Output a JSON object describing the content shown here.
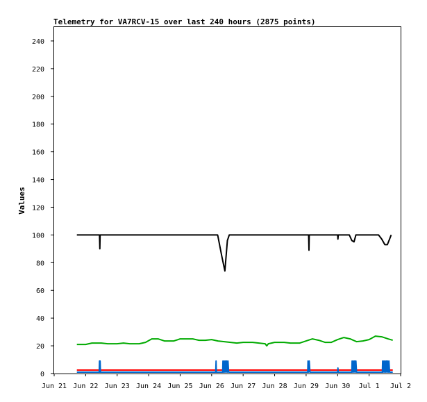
{
  "chart_data": {
    "type": "line",
    "title": "Telemetry for VA7RCV-15 over last 240 hours (2875 points)",
    "xlabel": "",
    "ylabel": "Values",
    "ylim": [
      0,
      250
    ],
    "xlim": [
      0,
      11
    ],
    "x_ticks": [
      {
        "label": "Jun 21",
        "value": 0
      },
      {
        "label": "Jun 22",
        "value": 1
      },
      {
        "label": "Jun 23",
        "value": 2
      },
      {
        "label": "Jun 24",
        "value": 3
      },
      {
        "label": "Jun 25",
        "value": 4
      },
      {
        "label": "Jun 26",
        "value": 5
      },
      {
        "label": "Jun 27",
        "value": 6
      },
      {
        "label": "Jun 28",
        "value": 7
      },
      {
        "label": "Jun 29",
        "value": 8
      },
      {
        "label": "Jun 30",
        "value": 9
      },
      {
        "label": "Jul 1",
        "value": 10
      },
      {
        "label": "Jul 2",
        "value": 11
      }
    ],
    "y_ticks": [
      0,
      20,
      40,
      60,
      80,
      100,
      120,
      140,
      160,
      180,
      200,
      220,
      240
    ],
    "grid": false,
    "legend": "none",
    "series": [
      {
        "color": "#000000",
        "points": [
          [
            0.72,
            100
          ],
          [
            1.44,
            100
          ],
          [
            1.45,
            90
          ],
          [
            1.46,
            100
          ],
          [
            5.19,
            100
          ],
          [
            5.2,
            99
          ],
          [
            5.32,
            85
          ],
          [
            5.42,
            74
          ],
          [
            5.5,
            96
          ],
          [
            5.56,
            100
          ],
          [
            8.08,
            100
          ],
          [
            8.09,
            89
          ],
          [
            8.1,
            100
          ],
          [
            9.0,
            100
          ],
          [
            9.01,
            97
          ],
          [
            9.02,
            100
          ],
          [
            9.37,
            100
          ],
          [
            9.45,
            96
          ],
          [
            9.52,
            95
          ],
          [
            9.58,
            100
          ],
          [
            10.3,
            100
          ],
          [
            10.4,
            97
          ],
          [
            10.5,
            93
          ],
          [
            10.58,
            93
          ],
          [
            10.65,
            97
          ],
          [
            10.7,
            100
          ]
        ]
      },
      {
        "color": "#00aa00",
        "points": [
          [
            0.72,
            21
          ],
          [
            1.0,
            21
          ],
          [
            1.2,
            22
          ],
          [
            1.5,
            22
          ],
          [
            1.7,
            21.5
          ],
          [
            2.0,
            21.5
          ],
          [
            2.2,
            22
          ],
          [
            2.4,
            21.5
          ],
          [
            2.7,
            21.5
          ],
          [
            2.9,
            22.5
          ],
          [
            3.1,
            25
          ],
          [
            3.3,
            25
          ],
          [
            3.5,
            23.5
          ],
          [
            3.8,
            23.5
          ],
          [
            4.0,
            25
          ],
          [
            4.4,
            25
          ],
          [
            4.6,
            24
          ],
          [
            4.8,
            24
          ],
          [
            5.0,
            24.5
          ],
          [
            5.2,
            23.5
          ],
          [
            5.4,
            23
          ],
          [
            5.6,
            22.5
          ],
          [
            5.8,
            22
          ],
          [
            6.0,
            22.5
          ],
          [
            6.3,
            22.5
          ],
          [
            6.5,
            22
          ],
          [
            6.7,
            21.5
          ],
          [
            6.75,
            20
          ],
          [
            6.8,
            21.5
          ],
          [
            7.0,
            22.5
          ],
          [
            7.3,
            22.5
          ],
          [
            7.5,
            22
          ],
          [
            7.8,
            22
          ],
          [
            8.0,
            23.5
          ],
          [
            8.2,
            25
          ],
          [
            8.4,
            24
          ],
          [
            8.6,
            22.5
          ],
          [
            8.8,
            22.5
          ],
          [
            9.0,
            24.5
          ],
          [
            9.2,
            26
          ],
          [
            9.4,
            25
          ],
          [
            9.6,
            23
          ],
          [
            9.8,
            23.5
          ],
          [
            10.0,
            24.5
          ],
          [
            10.2,
            27
          ],
          [
            10.4,
            26.5
          ],
          [
            10.6,
            25
          ],
          [
            10.75,
            24
          ]
        ]
      },
      {
        "color": "#ff0000",
        "points": [
          [
            0.72,
            2.5
          ],
          [
            10.75,
            2.5
          ]
        ]
      },
      {
        "color": "#0066cc",
        "points": [
          [
            0.72,
            1
          ],
          [
            1.43,
            1
          ],
          [
            1.44,
            9
          ],
          [
            1.45,
            1
          ],
          [
            1.46,
            9
          ],
          [
            1.47,
            1
          ],
          [
            5.13,
            1
          ],
          [
            5.14,
            9
          ],
          [
            5.15,
            1
          ],
          [
            5.35,
            1
          ],
          [
            5.36,
            9
          ],
          [
            5.38,
            1
          ],
          [
            5.4,
            9
          ],
          [
            5.42,
            1
          ],
          [
            5.44,
            9
          ],
          [
            5.46,
            1
          ],
          [
            5.48,
            9
          ],
          [
            5.5,
            1
          ],
          [
            5.52,
            9
          ],
          [
            5.54,
            1
          ],
          [
            8.05,
            1
          ],
          [
            8.06,
            9
          ],
          [
            8.08,
            1
          ],
          [
            8.1,
            9
          ],
          [
            8.12,
            1
          ],
          [
            9.0,
            1
          ],
          [
            9.01,
            4
          ],
          [
            9.02,
            1
          ],
          [
            9.45,
            1
          ],
          [
            9.46,
            9
          ],
          [
            9.48,
            1
          ],
          [
            9.5,
            9
          ],
          [
            9.52,
            1
          ],
          [
            9.54,
            9
          ],
          [
            9.56,
            1
          ],
          [
            9.58,
            9
          ],
          [
            9.6,
            1
          ],
          [
            10.42,
            1
          ],
          [
            10.43,
            9
          ],
          [
            10.45,
            1
          ],
          [
            10.47,
            9
          ],
          [
            10.49,
            1
          ],
          [
            10.51,
            9
          ],
          [
            10.53,
            1
          ],
          [
            10.55,
            9
          ],
          [
            10.57,
            1
          ],
          [
            10.59,
            9
          ],
          [
            10.61,
            1
          ],
          [
            10.63,
            9
          ],
          [
            10.65,
            1
          ],
          [
            10.75,
            1
          ]
        ]
      }
    ]
  }
}
